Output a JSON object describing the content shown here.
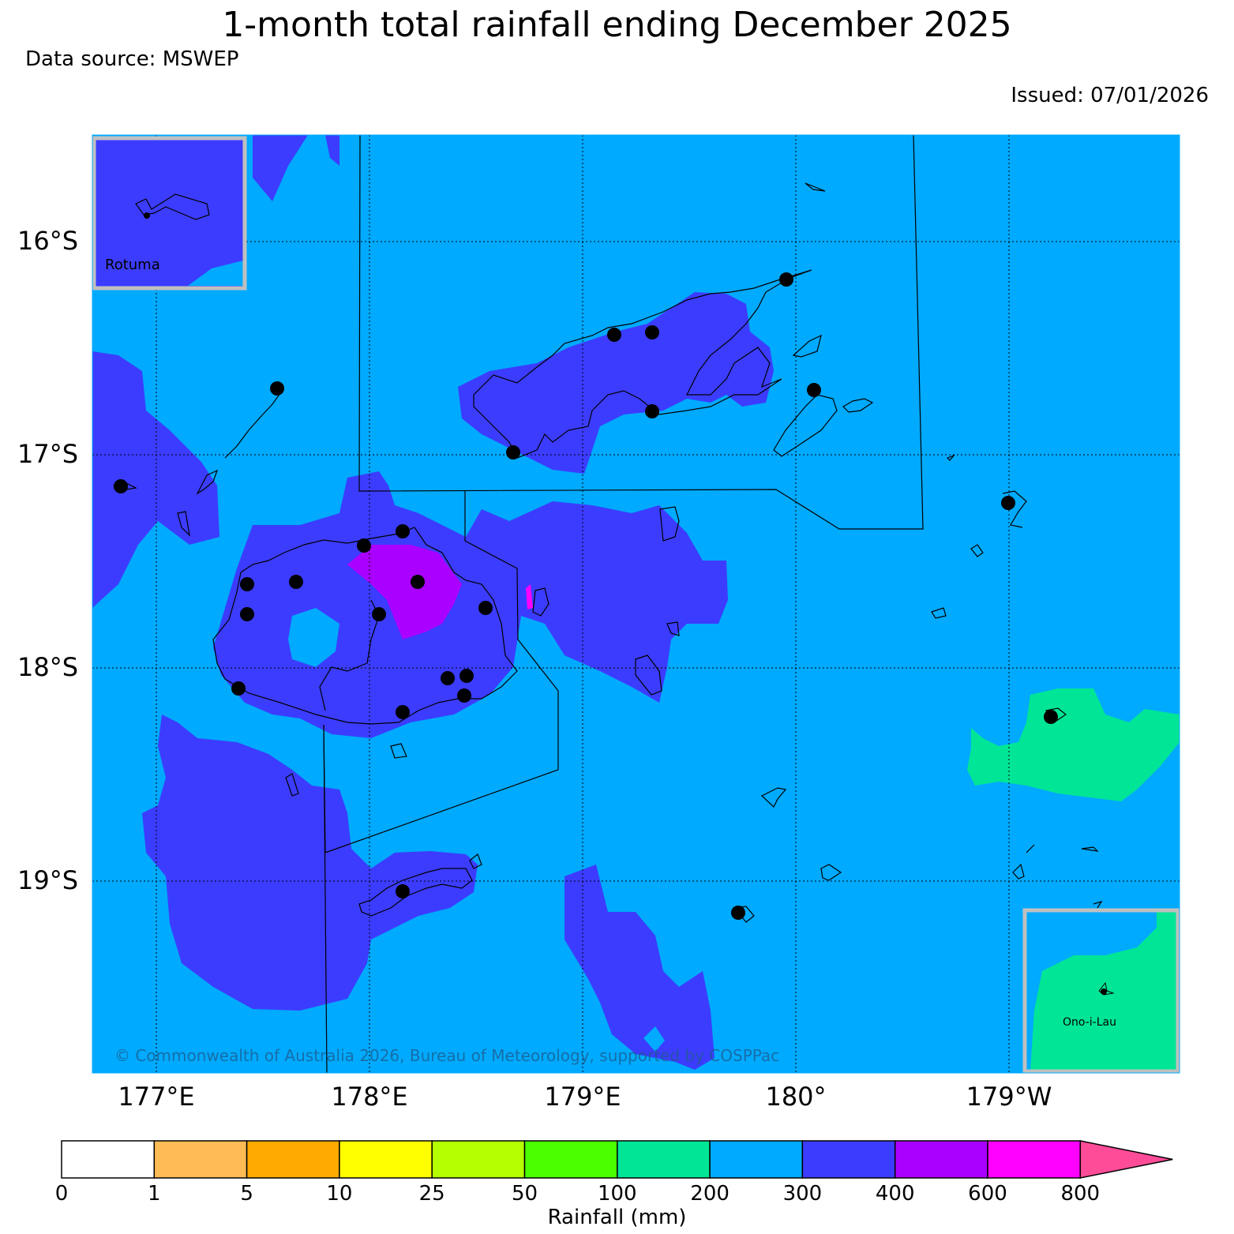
{
  "title": "1-month total rainfall ending December 2025",
  "data_source": "Data source: MSWEP",
  "issued": "Issued: 07/01/2026",
  "copyright": "© Commonwealth of Australia 2026, Bureau of Meteorology, supported by COSPPac",
  "lat_labels": [
    "16°S",
    "17°S",
    "18°S",
    "19°S"
  ],
  "lon_labels": [
    "177°E",
    "178°E",
    "179°E",
    "180°",
    "179°W"
  ],
  "insets": {
    "top_left": "Rotuma",
    "bottom_right": "Ono-i-Lau"
  },
  "colorbar": {
    "label": "Rainfall (mm)",
    "ticks": [
      "0",
      "1",
      "5",
      "10",
      "25",
      "50",
      "100",
      "200",
      "300",
      "400",
      "600",
      "800"
    ],
    "colors": [
      "#ffffff",
      "#ffbb55",
      "#ffaa00",
      "#ffff00",
      "#b4ff00",
      "#4cff00",
      "#00e696",
      "#00aaff",
      "#3c3cff",
      "#aa00ff",
      "#ff00ff",
      "#ff4c99"
    ]
  },
  "colors": {
    "ocean_200_300": "#00aaff",
    "band_300_400": "#3c3cff",
    "band_400_600": "#aa00ff",
    "band_100_200": "#00e696",
    "inset_border": "#c0c0c0"
  }
}
